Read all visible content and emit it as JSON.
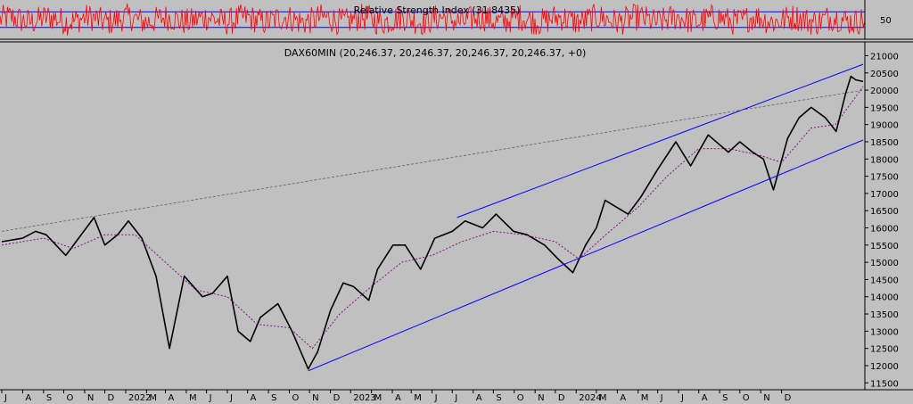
{
  "chart_data": [
    {
      "type": "line",
      "title": "Relative Strength Index (31.8435)",
      "ylim": [
        0,
        100
      ],
      "y_ticks": [
        50
      ],
      "reference_lines": [
        30,
        70
      ],
      "colors": {
        "line": "#ff0000",
        "reference": "#0000ff"
      }
    },
    {
      "type": "line",
      "title": "DAX60MIN (20,246.37, 20,246.37, 20,246.37, 20,246.37, +0)",
      "ylim": [
        11300,
        21400
      ],
      "y_ticks": [
        "11500",
        "12000",
        "12500",
        "13000",
        "13500",
        "14000",
        "14500",
        "15000",
        "15500",
        "16000",
        "16500",
        "17000",
        "17500",
        "18000",
        "18500",
        "19000",
        "19500",
        "20000",
        "20500",
        "21000"
      ],
      "x_ticks": [
        "J",
        "A",
        "S",
        "O",
        "N",
        "D",
        "2022",
        "M",
        "A",
        "M",
        "J",
        "J",
        "A",
        "S",
        "O",
        "N",
        "D",
        "2023",
        "M",
        "A",
        "M",
        "J",
        "J",
        "A",
        "S",
        "O",
        "N",
        "D",
        "2024",
        "M",
        "A",
        "M",
        "J",
        "J",
        "A",
        "S",
        "O",
        "N",
        "D"
      ],
      "x_range": [
        "2021-07-01",
        "2024-12-31"
      ],
      "grid": false,
      "series": [
        {
          "color": "#000000",
          "x": [
            "2021-07-01",
            "2021-08-01",
            "2021-08-20",
            "2021-09-05",
            "2021-10-04",
            "2021-11-15",
            "2021-12-01",
            "2021-12-20",
            "2022-01-05",
            "2022-01-25",
            "2022-02-15",
            "2022-03-07",
            "2022-03-29",
            "2022-04-25",
            "2022-05-10",
            "2022-06-01",
            "2022-06-17",
            "2022-07-05",
            "2022-07-20",
            "2022-08-15",
            "2022-09-05",
            "2022-09-29",
            "2022-10-13",
            "2022-11-01",
            "2022-11-20",
            "2022-12-05",
            "2022-12-28",
            "2023-01-10",
            "2023-02-02",
            "2023-02-20",
            "2023-03-15",
            "2023-04-05",
            "2023-05-01",
            "2023-05-20",
            "2023-06-15",
            "2023-07-05",
            "2023-07-31",
            "2023-08-20",
            "2023-09-15",
            "2023-10-05",
            "2023-10-27",
            "2023-11-15",
            "2023-12-01",
            "2023-12-14",
            "2024-01-17",
            "2024-02-05",
            "2024-03-01",
            "2024-03-28",
            "2024-04-19",
            "2024-05-15",
            "2024-06-14",
            "2024-07-01",
            "2024-07-20",
            "2024-08-05",
            "2024-08-20",
            "2024-09-10",
            "2024-09-27",
            "2024-10-15",
            "2024-11-05",
            "2024-11-21",
            "2024-12-05",
            "2024-12-13",
            "2024-12-20",
            "2024-12-31"
          ],
          "y": [
            15600,
            15700,
            15900,
            15800,
            15200,
            16300,
            15500,
            15800,
            16200,
            15700,
            14600,
            12500,
            14600,
            14000,
            14100,
            14600,
            13000,
            12700,
            13400,
            13800,
            13000,
            11900,
            12400,
            13600,
            14400,
            14300,
            13900,
            14800,
            15500,
            15500,
            14800,
            15700,
            15900,
            16200,
            16000,
            16400,
            15900,
            15800,
            15500,
            15100,
            14700,
            15500,
            16000,
            16800,
            16400,
            16900,
            17700,
            18500,
            17800,
            18700,
            18200,
            18500,
            18200,
            18000,
            17100,
            18600,
            19200,
            19500,
            19200,
            18800,
            19900,
            20400,
            20300,
            20250
          ]
        },
        {
          "color": "#800080",
          "x": [
            "2021-07-01",
            "2021-09-01",
            "2021-10-15",
            "2021-12-01",
            "2022-01-15",
            "2022-03-01",
            "2022-04-15",
            "2022-06-01",
            "2022-07-15",
            "2022-09-01",
            "2022-10-05",
            "2022-11-15",
            "2023-01-01",
            "2023-02-15",
            "2023-04-01",
            "2023-05-15",
            "2023-07-01",
            "2023-08-15",
            "2023-10-01",
            "2023-11-05",
            "2023-12-15",
            "2024-02-01",
            "2024-03-15",
            "2024-05-01",
            "2024-06-15",
            "2024-08-01",
            "2024-09-01",
            "2024-10-15",
            "2024-11-20",
            "2024-12-31"
          ],
          "y": [
            15500,
            15700,
            15400,
            15800,
            15800,
            15000,
            14200,
            14000,
            13200,
            13100,
            12500,
            13500,
            14300,
            15000,
            15200,
            15600,
            15900,
            15800,
            15600,
            15100,
            15800,
            16600,
            17500,
            18300,
            18300,
            18100,
            17900,
            18900,
            19000,
            20100
          ]
        },
        {
          "color": "#0000ff",
          "x": [
            "2022-09-29",
            "2024-12-31"
          ],
          "y": [
            11850,
            18550
          ]
        },
        {
          "color": "#0000ff",
          "x": [
            "2023-05-08",
            "2024-12-31"
          ],
          "y": [
            16300,
            20750
          ]
        },
        {
          "color": "#555555",
          "x": [
            "2021-07-01",
            "2024-12-31"
          ],
          "y": [
            15900,
            20000
          ]
        }
      ]
    }
  ]
}
